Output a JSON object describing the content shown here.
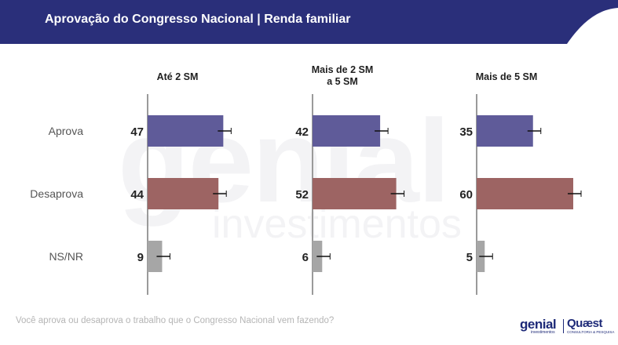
{
  "header": {
    "title": "Aprovação do Congresso Nacional | Renda familiar"
  },
  "footer": {
    "question": "Você aprova ou desaprova o trabalho que o Congresso Nacional vem fazendo?"
  },
  "watermark": {
    "big": "genial",
    "small": "investimentos"
  },
  "logos": {
    "genial": "genial",
    "genial_sub": "investimentos",
    "quaest": "Quæst",
    "quaest_sub": "CONSULTORIA & PESQUISA"
  },
  "colors": {
    "header_bg": "#2a2f7a",
    "aprova": "#5f5b99",
    "desaprova": "#9d6463",
    "nsnr": "#a6a6a6"
  },
  "chart_data": {
    "type": "bar",
    "orientation": "horizontal",
    "categories": [
      "Aprova",
      "Desaprova",
      "NS/NR"
    ],
    "panels": [
      {
        "title": "Até 2 SM",
        "values": [
          47,
          44,
          9
        ]
      },
      {
        "title": "Mais de 2 SM\na 5 SM",
        "values": [
          42,
          52,
          6
        ]
      },
      {
        "title": "Mais de 5 SM",
        "values": [
          35,
          60,
          5
        ]
      }
    ],
    "error_bars": true,
    "grid": false,
    "legend": "none"
  }
}
